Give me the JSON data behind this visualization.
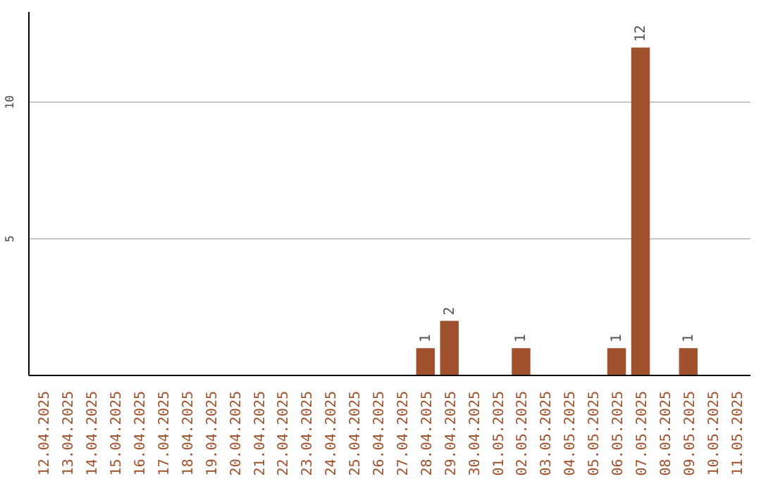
{
  "chart_data": {
    "type": "bar",
    "categories": [
      "12.04.2025",
      "13.04.2025",
      "14.04.2025",
      "15.04.2025",
      "16.04.2025",
      "17.04.2025",
      "18.04.2025",
      "19.04.2025",
      "20.04.2025",
      "21.04.2025",
      "22.04.2025",
      "23.04.2025",
      "24.04.2025",
      "25.04.2025",
      "26.04.2025",
      "27.04.2025",
      "28.04.2025",
      "29.04.2025",
      "30.04.2025",
      "01.05.2025",
      "02.05.2025",
      "03.05.2025",
      "04.05.2025",
      "05.05.2025",
      "06.05.2025",
      "07.05.2025",
      "08.05.2025",
      "09.05.2025",
      "10.05.2025",
      "11.05.2025"
    ],
    "values": [
      0,
      0,
      0,
      0,
      0,
      0,
      0,
      0,
      0,
      0,
      0,
      0,
      0,
      0,
      0,
      0,
      1,
      2,
      0,
      0,
      1,
      0,
      0,
      0,
      1,
      12,
      0,
      1,
      0,
      0
    ],
    "value_labels": [
      null,
      null,
      null,
      null,
      null,
      null,
      null,
      null,
      null,
      null,
      null,
      null,
      null,
      null,
      null,
      null,
      "1",
      "2",
      null,
      null,
      "1",
      null,
      null,
      null,
      "1",
      "12",
      null,
      "1",
      null,
      null
    ],
    "color": "#a0522d",
    "ylim": [
      0,
      13.3
    ],
    "yticks": [
      5,
      10
    ],
    "grid": "y"
  }
}
